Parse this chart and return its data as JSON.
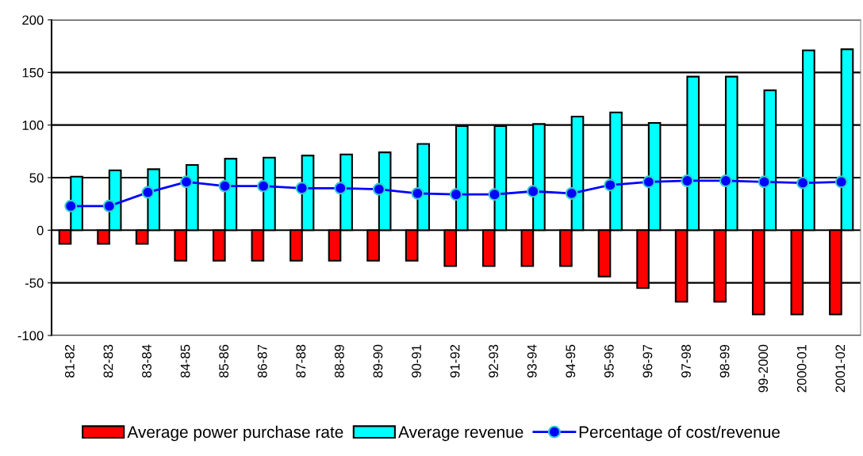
{
  "chart_data": {
    "type": "bar",
    "categories": [
      "81-82",
      "82-83",
      "83-84",
      "84-85",
      "85-86",
      "86-87",
      "87-88",
      "88-89",
      "89-90",
      "90-91",
      "91-92",
      "92-93",
      "93-94",
      "94-95",
      "95-96",
      "96-97",
      "97-98",
      "98-99",
      "99-2000",
      "2000-01",
      "2001-02"
    ],
    "series": [
      {
        "name": "Average power purchase rate",
        "color": "#ff0000",
        "values": [
          -13,
          -13,
          -13,
          -29,
          -29,
          -29,
          -29,
          -29,
          -29,
          -29,
          -34,
          -34,
          -34,
          -34,
          -44,
          -55,
          -68,
          -68,
          -80,
          -80,
          -80
        ]
      },
      {
        "name": "Average revenue",
        "color": "#00ffff",
        "values": [
          51,
          57,
          58,
          62,
          68,
          69,
          71,
          72,
          74,
          82,
          99,
          99,
          101,
          108,
          112,
          102,
          146,
          146,
          133,
          171,
          172
        ]
      },
      {
        "name": "Percentage of cost/revenue",
        "type": "line",
        "color": "#0000ff",
        "marker": "circle",
        "values": [
          23,
          23,
          36,
          46,
          42,
          42,
          40,
          40,
          39,
          35,
          34,
          34,
          37,
          35,
          43,
          46,
          47,
          47,
          46,
          45,
          46
        ]
      }
    ],
    "ylim": [
      -100,
      200
    ],
    "yticks": [
      -100,
      -50,
      0,
      50,
      100,
      150,
      200
    ],
    "grid": "y",
    "legend": "bottom"
  }
}
